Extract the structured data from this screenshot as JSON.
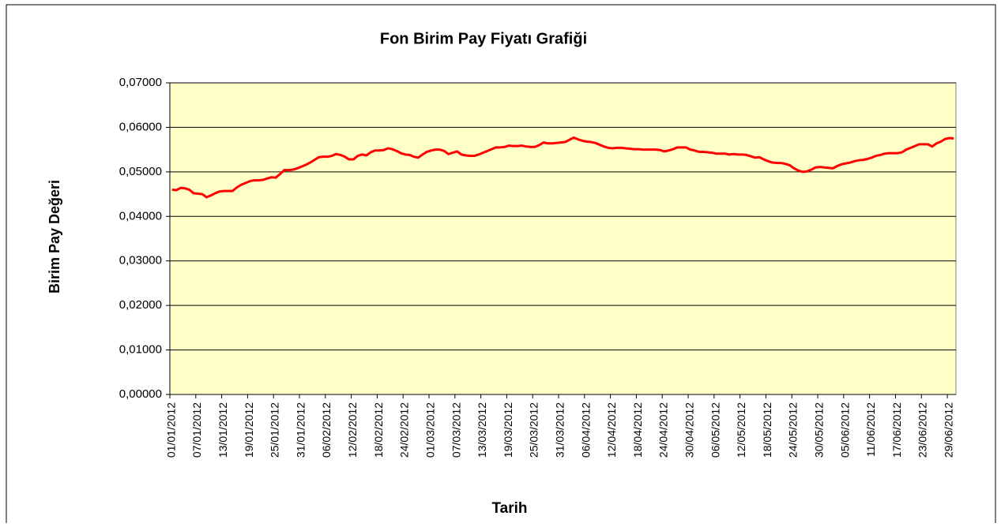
{
  "chart_data": {
    "type": "line",
    "title": "Fon Birim Pay Fiyatı Grafiği",
    "x_label": "Tarih",
    "y_label": "Birim Pay Değeri",
    "categories": [
      "01/01/2012",
      null,
      null,
      null,
      null,
      null,
      "07/01/2012",
      null,
      null,
      null,
      null,
      null,
      "13/01/2012",
      null,
      null,
      null,
      null,
      null,
      "19/01/2012",
      null,
      null,
      null,
      null,
      null,
      "25/01/2012",
      null,
      null,
      null,
      null,
      null,
      "31/01/2012",
      null,
      null,
      null,
      null,
      null,
      "06/02/2012",
      null,
      null,
      null,
      null,
      null,
      "12/02/2012",
      null,
      null,
      null,
      null,
      null,
      "18/02/2012",
      null,
      null,
      null,
      null,
      null,
      "24/02/2012",
      null,
      null,
      null,
      null,
      null,
      "01/03/2012",
      null,
      null,
      null,
      null,
      null,
      "07/03/2012",
      null,
      null,
      null,
      null,
      null,
      "13/03/2012",
      null,
      null,
      null,
      null,
      null,
      "19/03/2012",
      null,
      null,
      null,
      null,
      null,
      "25/03/2012",
      null,
      null,
      null,
      null,
      null,
      "31/03/2012",
      null,
      null,
      null,
      null,
      null,
      "06/04/2012",
      null,
      null,
      null,
      null,
      null,
      "12/04/2012",
      null,
      null,
      null,
      null,
      null,
      "18/04/2012",
      null,
      null,
      null,
      null,
      null,
      "24/04/2012",
      null,
      null,
      null,
      null,
      null,
      "30/04/2012",
      null,
      null,
      null,
      null,
      null,
      "06/05/2012",
      null,
      null,
      null,
      null,
      null,
      "12/05/2012",
      null,
      null,
      null,
      null,
      null,
      "18/05/2012",
      null,
      null,
      null,
      null,
      null,
      "24/05/2012",
      null,
      null,
      null,
      null,
      null,
      "30/05/2012",
      null,
      null,
      null,
      null,
      null,
      "05/06/2012",
      null,
      null,
      null,
      null,
      null,
      "11/06/2012",
      null,
      null,
      null,
      null,
      null,
      "17/06/2012",
      null,
      null,
      null,
      null,
      null,
      "23/06/2012",
      null,
      null,
      null,
      null,
      null,
      "29/06/2012",
      null
    ],
    "series": [
      {
        "color": "#ff0000",
        "values": [
          0.046,
          0.0459,
          0.0464,
          0.0463,
          0.046,
          0.0452,
          0.0451,
          0.045,
          0.0443,
          0.0447,
          0.0452,
          0.0456,
          0.0457,
          0.0457,
          0.0457,
          0.0465,
          0.0471,
          0.0475,
          0.0479,
          0.0481,
          0.0481,
          0.0482,
          0.0485,
          0.0488,
          0.0487,
          0.0495,
          0.0504,
          0.0504,
          0.0505,
          0.0508,
          0.0512,
          0.0516,
          0.0521,
          0.0527,
          0.0533,
          0.0534,
          0.0534,
          0.0536,
          0.054,
          0.0538,
          0.0534,
          0.0528,
          0.0528,
          0.0536,
          0.0539,
          0.0537,
          0.0544,
          0.0548,
          0.0548,
          0.0549,
          0.0553,
          0.0551,
          0.0547,
          0.0542,
          0.0539,
          0.0538,
          0.0534,
          0.0532,
          0.0539,
          0.0545,
          0.0548,
          0.055,
          0.055,
          0.0547,
          0.054,
          0.0543,
          0.0546,
          0.0539,
          0.0537,
          0.0536,
          0.0536,
          0.0539,
          0.0543,
          0.0547,
          0.0551,
          0.0555,
          0.0555,
          0.0556,
          0.0559,
          0.0558,
          0.0558,
          0.0559,
          0.0557,
          0.0556,
          0.0556,
          0.056,
          0.0566,
          0.0564,
          0.0564,
          0.0565,
          0.0566,
          0.0567,
          0.0572,
          0.0577,
          0.0573,
          0.057,
          0.0568,
          0.0567,
          0.0565,
          0.0561,
          0.0557,
          0.0554,
          0.0553,
          0.0554,
          0.0554,
          0.0553,
          0.0552,
          0.0551,
          0.0551,
          0.055,
          0.055,
          0.055,
          0.055,
          0.0549,
          0.0546,
          0.0548,
          0.0551,
          0.0555,
          0.0555,
          0.0555,
          0.055,
          0.0548,
          0.0545,
          0.0545,
          0.0544,
          0.0543,
          0.0541,
          0.0541,
          0.0541,
          0.0539,
          0.054,
          0.0539,
          0.0539,
          0.0538,
          0.0535,
          0.0532,
          0.0533,
          0.0528,
          0.0524,
          0.0521,
          0.052,
          0.052,
          0.0518,
          0.0515,
          0.0508,
          0.0503,
          0.05,
          0.0501,
          0.0505,
          0.051,
          0.0511,
          0.051,
          0.0509,
          0.0508,
          0.0513,
          0.0517,
          0.0519,
          0.0521,
          0.0524,
          0.0526,
          0.0527,
          0.0529,
          0.0532,
          0.0536,
          0.0538,
          0.0541,
          0.0542,
          0.0542,
          0.0542,
          0.0544,
          0.055,
          0.0554,
          0.0558,
          0.0562,
          0.0562,
          0.0562,
          0.0557,
          0.0564,
          0.0568,
          0.0574,
          0.0576,
          0.0575
        ]
      }
    ],
    "ylim": [
      0,
      0.07
    ],
    "yticks": [
      {
        "value": 0,
        "label": "0,00000"
      },
      {
        "value": 0.01,
        "label": "0,01000"
      },
      {
        "value": 0.02,
        "label": "0,02000"
      },
      {
        "value": 0.03,
        "label": "0,03000"
      },
      {
        "value": 0.04,
        "label": "0,04000"
      },
      {
        "value": 0.05,
        "label": "0,05000"
      },
      {
        "value": 0.06,
        "label": "0,06000"
      },
      {
        "value": 0.07,
        "label": "0,07000"
      }
    ],
    "grid": true,
    "plot_background": "#ffffc8"
  }
}
